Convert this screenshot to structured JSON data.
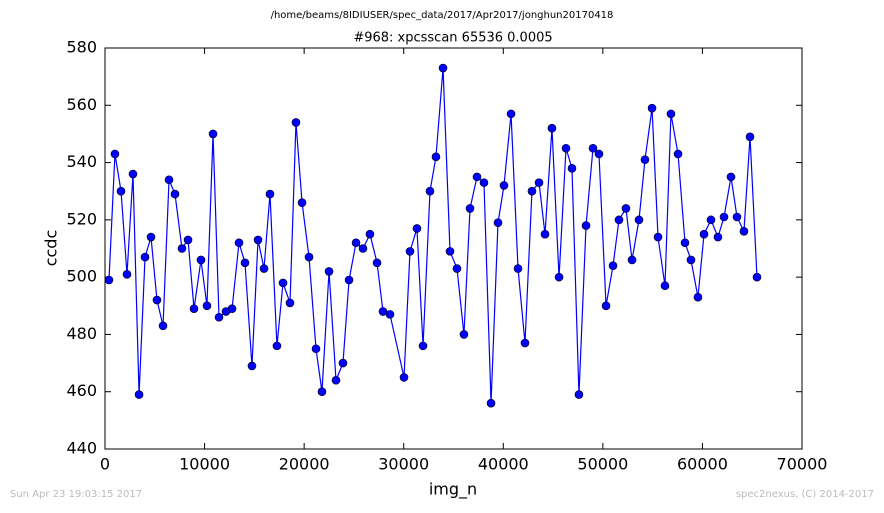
{
  "chart_data": {
    "type": "line",
    "suptitle": "/home/beams/8IDIUSER/spec_data/2017/Apr2017/jonghun20170418",
    "title": "#968: xpcsscan 65536 0.0005",
    "xlabel": "img_n",
    "ylabel": "ccdc",
    "timestamp": "Sun Apr 23 19:03:15 2017",
    "credit": "spec2nexus, (C) 2014-2017",
    "xlim": [
      0,
      70000
    ],
    "xticks": [
      0,
      10000,
      20000,
      30000,
      40000,
      50000,
      60000,
      70000
    ],
    "ylim": [
      440,
      580
    ],
    "yticks": [
      440,
      460,
      480,
      500,
      520,
      540,
      560,
      580
    ],
    "x": [
      400,
      1000,
      1610,
      2210,
      2810,
      3420,
      4020,
      4620,
      5220,
      5830,
      6430,
      7030,
      7730,
      8340,
      8940,
      9640,
      10240,
      10850,
      11450,
      12150,
      12760,
      13460,
      14060,
      14760,
      15370,
      15970,
      16570,
      17270,
      17880,
      18580,
      19180,
      19790,
      20490,
      21190,
      21790,
      22500,
      23200,
      23900,
      24510,
      25210,
      25910,
      26610,
      27320,
      27920,
      28620,
      30030,
      30630,
      31330,
      31940,
      32640,
      33240,
      33950,
      34650,
      35350,
      36050,
      36660,
      37360,
      38060,
      38770,
      39470,
      40070,
      40780,
      41480,
      42180,
      42880,
      43590,
      44190,
      44890,
      45600,
      46300,
      46900,
      47600,
      48310,
      49010,
      49610,
      50320,
      51020,
      51620,
      52320,
      52930,
      53630,
      54230,
      54940,
      55540,
      56240,
      56840,
      57550,
      58250,
      58850,
      59550,
      60160,
      60860,
      61560,
      62170,
      62870,
      63470,
      64170,
      64780,
      65480
    ],
    "series": [
      {
        "color": "#0000ff",
        "values": [
          499,
          543,
          530,
          501,
          536,
          459,
          507,
          514,
          492,
          483,
          534,
          529,
          510,
          513,
          489,
          506,
          490,
          550,
          486,
          488,
          489,
          512,
          505,
          469,
          513,
          503,
          529,
          476,
          498,
          491,
          554,
          526,
          507,
          475,
          460,
          502,
          464,
          470,
          499,
          512,
          510,
          515,
          505,
          488,
          487,
          465,
          509,
          517,
          476,
          530,
          542,
          573,
          509,
          503,
          480,
          524,
          535,
          533,
          456,
          519,
          532,
          557,
          503,
          477,
          530,
          533,
          515,
          552,
          500,
          545,
          538,
          459,
          518,
          545,
          543,
          490,
          504,
          520,
          524,
          506,
          520,
          541,
          559,
          514,
          497,
          557,
          543,
          512,
          506,
          493,
          515,
          520,
          514,
          521,
          535,
          521,
          516,
          549,
          500
        ]
      }
    ]
  }
}
